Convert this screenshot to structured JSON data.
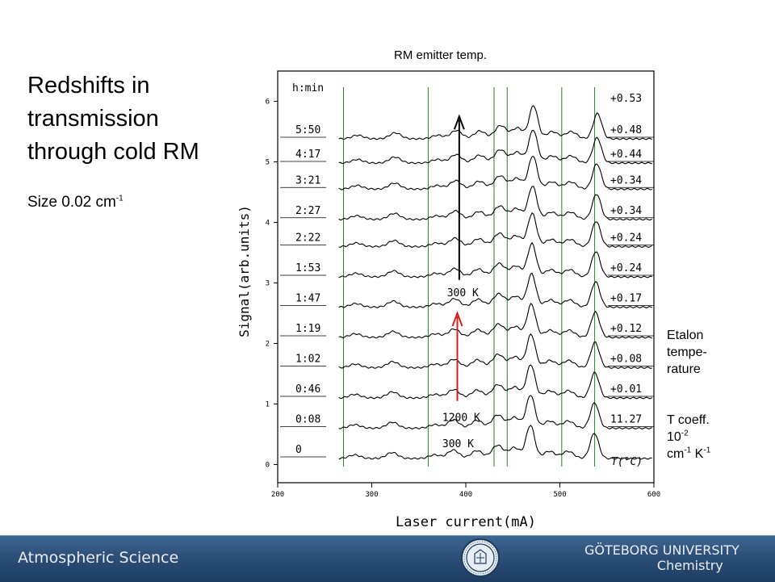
{
  "slide": {
    "title_lines": [
      "Redshifts in",
      "transmission",
      "through cold RM"
    ],
    "size_label": "Size 0.02 cm",
    "size_exp": "-1",
    "top_label": "RM emitter temp.",
    "etalon_lines": [
      "Etalon",
      "tempe-",
      "rature"
    ],
    "coeff_line1": "T coeff.",
    "coeff_base": "10",
    "coeff_exp": "-2",
    "coeff_unit_a": "cm",
    "coeff_exp_a": "-1",
    "coeff_unit_b": " K",
    "coeff_exp_b": "-1"
  },
  "footer": {
    "left_text": "Atmospheric Science",
    "right_line1": "GÖTEBORG UNIVERSITY",
    "right_line2": "Chemistry"
  },
  "colors": {
    "spectrum": "#000000",
    "marker_lines": "#1f8a1f",
    "arrow_cold": "#000000",
    "arrow_hot": "#d42020",
    "footer_bg": "#2c4f78"
  },
  "chart_data": {
    "type": "line",
    "xlabel": "Laser current(mA)",
    "ylabel": "Signal(arb.units)",
    "xlim": [
      200,
      600
    ],
    "ylim": [
      -0.3,
      6.5
    ],
    "x_ticks": [
      200,
      300,
      400,
      500,
      600
    ],
    "y_ticks": [
      0,
      1,
      2,
      3,
      4,
      5,
      6
    ],
    "marker_lines_x": [
      270,
      360,
      430,
      444,
      502,
      537
    ],
    "series_peaks_x": [
      285,
      325,
      370,
      390,
      415,
      437,
      455,
      472,
      492,
      512,
      540
    ],
    "series_peaks_h": [
      0.06,
      0.1,
      0.06,
      0.14,
      0.13,
      0.22,
      0.18,
      0.55,
      0.12,
      0.12,
      0.42
    ],
    "left_header": "h:min",
    "right_header": "+0.53",
    "temp_label": "T(°C)",
    "series": [
      {
        "time": "5:50",
        "offset": "+0.48",
        "baseline": 5.38,
        "shift": 0.0
      },
      {
        "time": "4:17",
        "offset": "+0.44",
        "baseline": 4.98,
        "shift": -0.4
      },
      {
        "time": "3:21",
        "offset": "+0.34",
        "baseline": 4.55,
        "shift": -0.7
      },
      {
        "time": "2:27",
        "offset": "+0.34",
        "baseline": 4.05,
        "shift": -1.0
      },
      {
        "time": "2:22",
        "offset": "+0.24",
        "baseline": 3.6,
        "shift": -1.4
      },
      {
        "time": "1:53",
        "offset": "+0.24",
        "baseline": 3.1,
        "shift": -1.7
      },
      {
        "time": "1:47",
        "offset": "+0.17",
        "baseline": 2.6,
        "shift": -2.0
      },
      {
        "time": "1:19",
        "offset": "+0.12",
        "baseline": 2.1,
        "shift": -2.3
      },
      {
        "time": "1:02",
        "offset": "+0.08",
        "baseline": 1.6,
        "shift": -2.6
      },
      {
        "time": "0:46",
        "offset": "+0.01",
        "baseline": 1.1,
        "shift": -2.9
      },
      {
        "time": "0:08",
        "offset": "11.27",
        "baseline": 0.6,
        "shift": -3.1
      },
      {
        "time": "0",
        "offset": "",
        "baseline": 0.1,
        "shift": -3.3
      }
    ],
    "annotations": [
      {
        "text": "300 K",
        "x": 380,
        "y": 2.78
      },
      {
        "text": "1200 K",
        "x": 375,
        "y": 0.72
      },
      {
        "text": "300 K",
        "x": 375,
        "y": 0.29
      }
    ],
    "arrows": [
      {
        "x": 393,
        "y_from": 3.05,
        "y_to": 5.75,
        "color": "cold"
      },
      {
        "x": 391,
        "y_from": 1.05,
        "y_to": 2.5,
        "color": "hot"
      }
    ]
  }
}
